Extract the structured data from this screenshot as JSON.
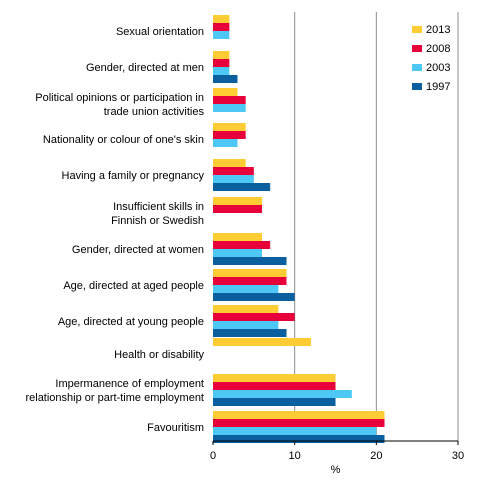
{
  "chart_data": {
    "type": "bar",
    "orientation": "horizontal",
    "categories": [
      [
        "Sexual orientation"
      ],
      [
        "Gender, directed at men"
      ],
      [
        "Political opinions or participation in",
        "trade union activities"
      ],
      [
        "Nationality or colour of one's skin"
      ],
      [
        "Having a family or pregnancy"
      ],
      [
        "Insufficient skills in",
        "Finnish or Swedish"
      ],
      [
        "Gender, directed at women"
      ],
      [
        "Age, directed at aged people"
      ],
      [
        "Age, directed at young people"
      ],
      [
        "Health or disability"
      ],
      [
        "Impermanence of employment",
        "relationship or part-time employment"
      ],
      [
        "Favouritism"
      ]
    ],
    "series": [
      {
        "name": "2013",
        "color": "#ffcc33",
        "values": [
          2,
          2,
          3,
          4,
          4,
          6,
          6,
          9,
          8,
          12,
          15,
          21
        ]
      },
      {
        "name": "2008",
        "color": "#e8003a",
        "values": [
          2,
          2,
          4,
          4,
          5,
          6,
          7,
          9,
          10,
          null,
          15,
          21
        ]
      },
      {
        "name": "2003",
        "color": "#4dc8f5",
        "values": [
          2,
          2,
          4,
          3,
          5,
          null,
          6,
          8,
          8,
          null,
          17,
          20
        ]
      },
      {
        "name": "1997",
        "color": "#0a5f9e",
        "values": [
          null,
          3,
          null,
          null,
          7,
          null,
          9,
          10,
          9,
          null,
          15,
          21
        ]
      }
    ],
    "xlabel": "%",
    "xlim": [
      0,
      30
    ],
    "xticks": [
      0,
      10,
      20,
      30
    ],
    "grid": "vertical",
    "legend_position": "top-right"
  }
}
